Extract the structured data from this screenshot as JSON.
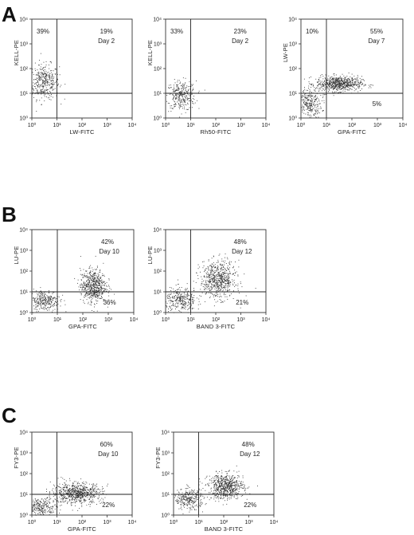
{
  "panels": [
    {
      "letter": "A"
    },
    {
      "letter": "B"
    },
    {
      "letter": "C"
    }
  ],
  "chart_data": [
    {
      "type": "scatter",
      "panel": "A",
      "xlabel": "LW-FITC",
      "ylabel": "KELL-PE",
      "xlim": [
        1,
        10000
      ],
      "ylim": [
        1,
        10000
      ],
      "scale": "log",
      "xticks": [
        "10⁰",
        "10¹",
        "10²",
        "10³",
        "10⁴"
      ],
      "yticks": [
        "10⁰",
        "10¹",
        "10²",
        "10³",
        "10⁴"
      ],
      "quadrant_labels": {
        "ul": "39%",
        "ur": "19%",
        "lr": ""
      },
      "day": "Day 2",
      "quadrant_gate": {
        "x": 10,
        "y": 10
      },
      "clusters": [
        {
          "cx": 3,
          "cy": 30,
          "sx": 0.3,
          "sy": 0.35,
          "n": 380
        }
      ]
    },
    {
      "type": "scatter",
      "panel": "A",
      "xlabel": "Rh50-FITC",
      "ylabel": "KELL-PE",
      "xlim": [
        1,
        10000
      ],
      "ylim": [
        1,
        10000
      ],
      "scale": "log",
      "xticks": [
        "10⁰",
        "10¹",
        "10²",
        "10³",
        "10⁴"
      ],
      "yticks": [
        "10⁰",
        "10¹",
        "10²",
        "10³",
        "10⁴"
      ],
      "quadrant_labels": {
        "ul": "33%",
        "ur": "23%",
        "lr": ""
      },
      "day": "Day 2",
      "quadrant_gate": {
        "x": 10,
        "y": 10
      },
      "clusters": [
        {
          "cx": 4,
          "cy": 8,
          "sx": 0.3,
          "sy": 0.3,
          "n": 320
        }
      ]
    },
    {
      "type": "scatter",
      "panel": "A",
      "xlabel": "GPA-FITC",
      "ylabel": "LW-PE",
      "xlim": [
        1,
        10000
      ],
      "ylim": [
        1,
        10000
      ],
      "scale": "log",
      "xticks": [
        "10⁰",
        "10¹",
        "10²",
        "10³",
        "10⁴"
      ],
      "yticks": [
        "10⁰",
        "10¹",
        "10²",
        "10³",
        "10⁴"
      ],
      "quadrant_labels": {
        "ul": "10%",
        "ur": "55%",
        "lr": "5%"
      },
      "day": "Day 7",
      "quadrant_gate": {
        "x": 10,
        "y": 10
      },
      "clusters": [
        {
          "cx": 2,
          "cy": 4,
          "sx": 0.25,
          "sy": 0.3,
          "n": 300
        },
        {
          "cx": 30,
          "cy": 25,
          "sx": 0.45,
          "sy": 0.15,
          "n": 700
        }
      ]
    },
    {
      "type": "scatter",
      "panel": "B",
      "xlabel": "GPA-FITC",
      "ylabel": "LU-PE",
      "xlim": [
        1,
        10000
      ],
      "ylim": [
        1,
        10000
      ],
      "scale": "log",
      "xticks": [
        "10⁰",
        "10¹",
        "10²",
        "10³",
        "10⁴"
      ],
      "yticks": [
        "10⁰",
        "10¹",
        "10²",
        "10³",
        "10⁴"
      ],
      "quadrant_labels": {
        "ul": "",
        "ur": "42%",
        "lr": "36%"
      },
      "day": "Day 10",
      "quadrant_gate": {
        "x": 10,
        "y": 10
      },
      "clusters": [
        {
          "cx": 3,
          "cy": 4,
          "sx": 0.3,
          "sy": 0.25,
          "n": 300
        },
        {
          "cx": 250,
          "cy": 20,
          "sx": 0.25,
          "sy": 0.4,
          "n": 600
        }
      ]
    },
    {
      "type": "scatter",
      "panel": "B",
      "xlabel": "BAND 3-FITC",
      "ylabel": "LU-PE",
      "xlim": [
        1,
        10000
      ],
      "ylim": [
        1,
        10000
      ],
      "scale": "log",
      "xticks": [
        "10⁰",
        "10¹",
        "10²",
        "10³",
        "10⁴"
      ],
      "yticks": [
        "10⁰",
        "10¹",
        "10²",
        "10³",
        "10⁴"
      ],
      "quadrant_labels": {
        "ul": "",
        "ur": "48%",
        "lr": "21%"
      },
      "day": "Day 12",
      "quadrant_gate": {
        "x": 10,
        "y": 10
      },
      "clusters": [
        {
          "cx": 4,
          "cy": 4,
          "sx": 0.3,
          "sy": 0.3,
          "n": 300
        },
        {
          "cx": 120,
          "cy": 40,
          "sx": 0.35,
          "sy": 0.45,
          "n": 650
        }
      ]
    },
    {
      "type": "scatter",
      "panel": "C",
      "xlabel": "GPA-FITC",
      "ylabel": "FY3-PE",
      "xlim": [
        1,
        10000
      ],
      "ylim": [
        1,
        10000
      ],
      "scale": "log",
      "xticks": [
        "10⁰",
        "10¹",
        "10²",
        "10³",
        "10⁴"
      ],
      "yticks": [
        "10⁰",
        "10¹",
        "10²",
        "10³",
        "10⁴"
      ],
      "quadrant_labels": {
        "ul": "",
        "ur": "60%",
        "lr": "22%"
      },
      "day": "Day 10",
      "quadrant_gate": {
        "x": 10,
        "y": 10
      },
      "clusters": [
        {
          "cx": 2.5,
          "cy": 2.5,
          "sx": 0.3,
          "sy": 0.2,
          "n": 250
        },
        {
          "cx": 60,
          "cy": 12,
          "sx": 0.5,
          "sy": 0.25,
          "n": 700
        }
      ]
    },
    {
      "type": "scatter",
      "panel": "C",
      "xlabel": "BAND 3-FITC",
      "ylabel": "FY3-PE",
      "xlim": [
        1,
        10000
      ],
      "ylim": [
        1,
        10000
      ],
      "scale": "log",
      "xticks": [
        "10⁰",
        "10¹",
        "10²",
        "10³",
        "10⁴"
      ],
      "yticks": [
        "10⁰",
        "10¹",
        "10²",
        "10³",
        "10⁴"
      ],
      "quadrant_labels": {
        "ul": "",
        "ur": "48%",
        "lr": "22%"
      },
      "day": "Day 12",
      "quadrant_gate": {
        "x": 10,
        "y": 10
      },
      "clusters": [
        {
          "cx": 4,
          "cy": 6,
          "sx": 0.3,
          "sy": 0.25,
          "n": 300
        },
        {
          "cx": 120,
          "cy": 25,
          "sx": 0.35,
          "sy": 0.3,
          "n": 650
        }
      ]
    }
  ]
}
